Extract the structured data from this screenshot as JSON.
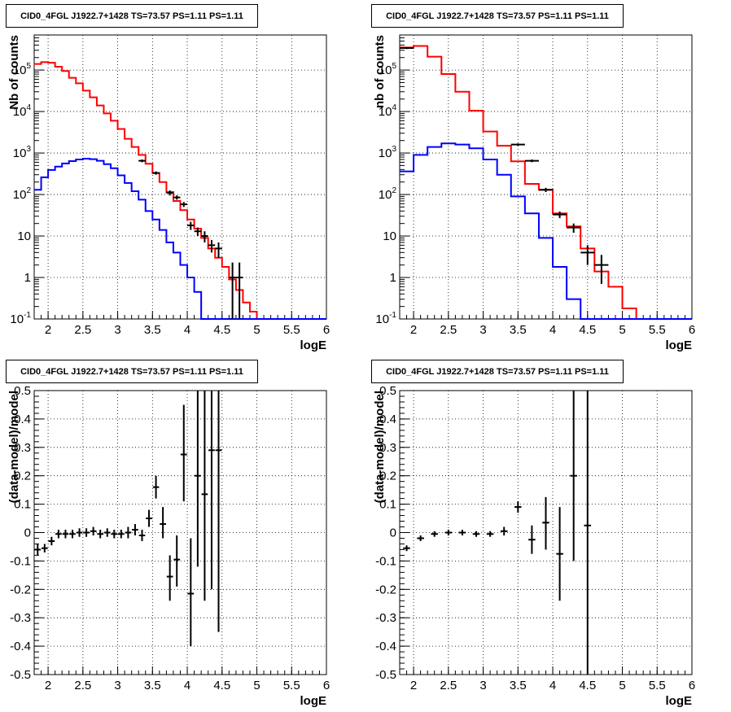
{
  "chart_data": [
    {
      "type": "line",
      "title": "CID0_4FGL J1922.7+1428 TS=73.57 PS=1.11 PS=1.11",
      "xlabel": "logE",
      "ylabel": "Nb of counts",
      "xlim": [
        1.8,
        6.0
      ],
      "ylim": [
        0.1,
        700000
      ],
      "yscale": "log",
      "grid": true,
      "x_ticks": [
        "2",
        "2.5",
        "3",
        "3.5",
        "4",
        "4.5",
        "5",
        "5.5",
        "6"
      ],
      "y_ticks": [
        "10^-1",
        "1",
        "10",
        "10^2",
        "10^3",
        "10^4",
        "10^5"
      ],
      "bin_edges": [
        1.8,
        1.9,
        2.0,
        2.1,
        2.2,
        2.3,
        2.4,
        2.5,
        2.6,
        2.7,
        2.8,
        2.9,
        3.0,
        3.1,
        3.2,
        3.3,
        3.4,
        3.5,
        3.6,
        3.7,
        3.8,
        3.9,
        4.0,
        4.1,
        4.2,
        4.3,
        4.4,
        4.5,
        4.6,
        4.7,
        4.8,
        4.9,
        5.0,
        5.1,
        5.2,
        5.3,
        5.4,
        5.5,
        5.6,
        5.7,
        5.8,
        5.9,
        6.0
      ],
      "series": [
        {
          "color": "#ff0000",
          "values": [
            140000,
            155000,
            150000,
            120000,
            95000,
            65000,
            48000,
            32000,
            22000,
            14000,
            9000,
            6000,
            3800,
            2200,
            1400,
            900,
            550,
            330,
            200,
            115,
            70,
            42,
            25,
            15,
            9,
            5,
            3,
            1.8,
            0.9,
            0.5,
            0.25,
            0.15,
            0.1,
            0.1,
            0.1,
            0.1,
            0.1,
            0.1,
            0.1,
            0.1,
            0.1,
            0.1
          ]
        },
        {
          "color": "#0000ff",
          "values": [
            130,
            260,
            390,
            470,
            560,
            640,
            700,
            730,
            710,
            650,
            540,
            430,
            290,
            190,
            120,
            75,
            40,
            25,
            14,
            7,
            4,
            2,
            1,
            0.45,
            0.1,
            0.1,
            0.1,
            0.1,
            0.1,
            0.1,
            0.1,
            0.1,
            0.1,
            0.1,
            0.1,
            0.1,
            0.1,
            0.1,
            0.1,
            0.1,
            0.1,
            0.1
          ]
        }
      ],
      "points": [
        {
          "x": 3.35,
          "y": 650,
          "ylo": 600,
          "yhi": 700
        },
        {
          "x": 3.55,
          "y": 330,
          "ylo": 300,
          "yhi": 360
        },
        {
          "x": 3.75,
          "y": 110,
          "ylo": 95,
          "yhi": 125
        },
        {
          "x": 3.85,
          "y": 85,
          "ylo": 75,
          "yhi": 95
        },
        {
          "x": 3.95,
          "y": 58,
          "ylo": 50,
          "yhi": 66
        },
        {
          "x": 4.05,
          "y": 18,
          "ylo": 14,
          "yhi": 22
        },
        {
          "x": 4.15,
          "y": 13,
          "ylo": 10,
          "yhi": 16
        },
        {
          "x": 4.25,
          "y": 10,
          "ylo": 7,
          "yhi": 13
        },
        {
          "x": 4.35,
          "y": 6,
          "ylo": 4,
          "yhi": 8
        },
        {
          "x": 4.45,
          "y": 5,
          "ylo": 3,
          "yhi": 7
        },
        {
          "x": 4.65,
          "y": 1,
          "ylo": 0.1,
          "yhi": 2.3
        },
        {
          "x": 4.75,
          "y": 1,
          "ylo": 0.1,
          "yhi": 2.3
        }
      ]
    },
    {
      "type": "line",
      "title": "CID0_4FGL J1922.7+1428 TS=73.57 PS=1.11 PS=1.11",
      "xlabel": "logE",
      "ylabel": "nb of counts",
      "xlim": [
        1.8,
        6.0
      ],
      "ylim": [
        0.1,
        700000
      ],
      "yscale": "log",
      "grid": true,
      "x_ticks": [
        "2",
        "2.5",
        "3",
        "3.5",
        "4",
        "4.5",
        "5",
        "5.5",
        "6"
      ],
      "y_ticks": [
        "10^-1",
        "1",
        "10",
        "10^2",
        "10^3",
        "10^4",
        "10^5"
      ],
      "bin_edges": [
        1.8,
        2.0,
        2.2,
        2.4,
        2.6,
        2.8,
        3.0,
        3.2,
        3.4,
        3.6,
        3.8,
        4.0,
        4.2,
        4.4,
        4.6,
        4.8,
        5.0,
        5.2,
        5.4,
        5.6,
        5.8,
        6.0
      ],
      "series": [
        {
          "color": "#ff0000",
          "values": [
            350000,
            380000,
            210000,
            80000,
            30000,
            10500,
            3300,
            1500,
            630,
            180,
            130,
            35,
            17,
            5,
            1.4,
            0.6,
            0.18,
            0.1,
            0.1,
            0.1,
            0.1
          ]
        },
        {
          "color": "#0000ff",
          "values": [
            360,
            900,
            1400,
            1700,
            1600,
            1300,
            700,
            300,
            90,
            35,
            9,
            1.8,
            0.3,
            0.1,
            0.1,
            0.1,
            0.1,
            0.1,
            0.1,
            0.1,
            0.1
          ]
        }
      ],
      "points": [
        {
          "x": 1.9,
          "y": 340000,
          "ylo": 320000,
          "yhi": 360000
        },
        {
          "x": 3.5,
          "y": 1600,
          "ylo": 1500,
          "yhi": 1700
        },
        {
          "x": 3.7,
          "y": 650,
          "ylo": 600,
          "yhi": 700
        },
        {
          "x": 3.9,
          "y": 130,
          "ylo": 115,
          "yhi": 145
        },
        {
          "x": 4.1,
          "y": 33,
          "ylo": 27,
          "yhi": 39
        },
        {
          "x": 4.3,
          "y": 16,
          "ylo": 12,
          "yhi": 20
        },
        {
          "x": 4.5,
          "y": 4,
          "ylo": 2,
          "yhi": 6
        },
        {
          "x": 4.7,
          "y": 2,
          "ylo": 0.7,
          "yhi": 3.5
        }
      ]
    },
    {
      "type": "scatter",
      "title": "CID0_4FGL J1922.7+1428 TS=73.57 PS=1.11 PS=1.11",
      "xlabel": "logE",
      "ylabel": "(data-model)/model",
      "xlim": [
        1.8,
        6.0
      ],
      "ylim": [
        -0.5,
        0.5
      ],
      "grid": true,
      "x_ticks": [
        "2",
        "2.5",
        "3",
        "3.5",
        "4",
        "4.5",
        "5",
        "5.5",
        "6"
      ],
      "y_ticks": [
        "-0.5",
        "-0.4",
        "-0.3",
        "-0.2",
        "-0.1",
        "0",
        "0.1",
        "0.2",
        "0.3",
        "0.4",
        "0.5"
      ],
      "points": [
        {
          "x": 1.85,
          "y": -0.06,
          "ylo": -0.08,
          "yhi": -0.04
        },
        {
          "x": 1.95,
          "y": -0.055,
          "ylo": -0.07,
          "yhi": -0.04
        },
        {
          "x": 2.05,
          "y": -0.03,
          "ylo": -0.045,
          "yhi": -0.015
        },
        {
          "x": 2.15,
          "y": -0.005,
          "ylo": -0.02,
          "yhi": 0.01
        },
        {
          "x": 2.25,
          "y": -0.005,
          "ylo": -0.02,
          "yhi": 0.01
        },
        {
          "x": 2.35,
          "y": -0.005,
          "ylo": -0.02,
          "yhi": 0.01
        },
        {
          "x": 2.45,
          "y": 0.0,
          "ylo": -0.015,
          "yhi": 0.015
        },
        {
          "x": 2.55,
          "y": 0.0,
          "ylo": -0.015,
          "yhi": 0.015
        },
        {
          "x": 2.65,
          "y": 0.005,
          "ylo": -0.01,
          "yhi": 0.02
        },
        {
          "x": 2.75,
          "y": -0.005,
          "ylo": -0.02,
          "yhi": 0.01
        },
        {
          "x": 2.85,
          "y": 0.0,
          "ylo": -0.015,
          "yhi": 0.015
        },
        {
          "x": 2.95,
          "y": -0.005,
          "ylo": -0.02,
          "yhi": 0.01
        },
        {
          "x": 3.05,
          "y": -0.005,
          "ylo": -0.02,
          "yhi": 0.01
        },
        {
          "x": 3.15,
          "y": 0.0,
          "ylo": -0.02,
          "yhi": 0.02
        },
        {
          "x": 3.25,
          "y": 0.01,
          "ylo": -0.01,
          "yhi": 0.03
        },
        {
          "x": 3.35,
          "y": -0.01,
          "ylo": -0.03,
          "yhi": 0.01
        },
        {
          "x": 3.45,
          "y": 0.05,
          "ylo": 0.02,
          "yhi": 0.08
        },
        {
          "x": 3.55,
          "y": 0.16,
          "ylo": 0.12,
          "yhi": 0.2
        },
        {
          "x": 3.65,
          "y": 0.03,
          "ylo": -0.02,
          "yhi": 0.09
        },
        {
          "x": 3.75,
          "y": -0.155,
          "ylo": -0.24,
          "yhi": -0.08
        },
        {
          "x": 3.85,
          "y": -0.095,
          "ylo": -0.19,
          "yhi": -0.01
        },
        {
          "x": 3.95,
          "y": 0.275,
          "ylo": 0.11,
          "yhi": 0.45
        },
        {
          "x": 4.05,
          "y": -0.215,
          "ylo": -0.4,
          "yhi": -0.02
        },
        {
          "x": 4.15,
          "y": 0.2,
          "ylo": -0.12,
          "yhi": 0.5
        },
        {
          "x": 4.25,
          "y": 0.135,
          "ylo": -0.24,
          "yhi": 0.5
        },
        {
          "x": 4.35,
          "y": 0.29,
          "ylo": -0.2,
          "yhi": 0.5
        },
        {
          "x": 4.45,
          "y": 0.29,
          "ylo": -0.35,
          "yhi": 0.5
        }
      ]
    },
    {
      "type": "scatter",
      "title": "CID0_4FGL J1922.7+1428 TS=73.57 PS=1.11 PS=1.11",
      "xlabel": "logE",
      "ylabel": "(data-model)/model",
      "xlim": [
        1.8,
        6.0
      ],
      "ylim": [
        -0.5,
        0.5
      ],
      "grid": true,
      "x_ticks": [
        "2",
        "2.5",
        "3",
        "3.5",
        "4",
        "4.5",
        "5",
        "5.5",
        "6"
      ],
      "y_ticks": [
        "-0.5",
        "-0.4",
        "-0.3",
        "-0.2",
        "-0.1",
        "0",
        "0.1",
        "0.2",
        "0.3",
        "0.4",
        "0.5"
      ],
      "points": [
        {
          "x": 1.9,
          "y": -0.055,
          "ylo": -0.065,
          "yhi": -0.045
        },
        {
          "x": 2.1,
          "y": -0.02,
          "ylo": -0.03,
          "yhi": -0.01
        },
        {
          "x": 2.3,
          "y": -0.005,
          "ylo": -0.015,
          "yhi": 0.005
        },
        {
          "x": 2.5,
          "y": 0.0,
          "ylo": -0.01,
          "yhi": 0.01
        },
        {
          "x": 2.7,
          "y": 0.0,
          "ylo": -0.01,
          "yhi": 0.01
        },
        {
          "x": 2.9,
          "y": -0.005,
          "ylo": -0.015,
          "yhi": 0.005
        },
        {
          "x": 3.1,
          "y": -0.005,
          "ylo": -0.015,
          "yhi": 0.005
        },
        {
          "x": 3.3,
          "y": 0.005,
          "ylo": -0.01,
          "yhi": 0.02
        },
        {
          "x": 3.5,
          "y": 0.09,
          "ylo": 0.07,
          "yhi": 0.11
        },
        {
          "x": 3.7,
          "y": -0.025,
          "ylo": -0.075,
          "yhi": 0.025
        },
        {
          "x": 3.9,
          "y": 0.035,
          "ylo": -0.06,
          "yhi": 0.125
        },
        {
          "x": 4.1,
          "y": -0.075,
          "ylo": -0.24,
          "yhi": 0.09
        },
        {
          "x": 4.3,
          "y": 0.2,
          "ylo": -0.1,
          "yhi": 0.5
        },
        {
          "x": 4.5,
          "y": 0.025,
          "ylo": -0.5,
          "yhi": 0.5
        }
      ]
    }
  ]
}
